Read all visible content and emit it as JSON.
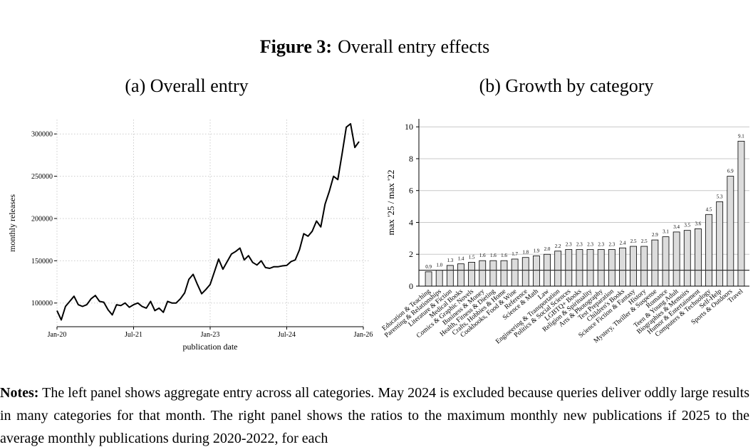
{
  "figure_title": {
    "label": "Figure 3:",
    "text": "Overall entry effects"
  },
  "chart_data": [
    {
      "type": "line",
      "title": "(a) Overall entry",
      "x_label": "publication date",
      "y_label": "monthly releases",
      "x": [
        "2020-01",
        "2020-02",
        "2020-03",
        "2020-04",
        "2020-05",
        "2020-06",
        "2020-07",
        "2020-08",
        "2020-09",
        "2020-10",
        "2020-11",
        "2020-12",
        "2021-01",
        "2021-02",
        "2021-03",
        "2021-04",
        "2021-05",
        "2021-06",
        "2021-07",
        "2021-08",
        "2021-09",
        "2021-10",
        "2021-11",
        "2021-12",
        "2022-01",
        "2022-02",
        "2022-03",
        "2022-04",
        "2022-05",
        "2022-06",
        "2022-07",
        "2022-08",
        "2022-09",
        "2022-10",
        "2022-11",
        "2022-12",
        "2023-01",
        "2023-02",
        "2023-03",
        "2023-04",
        "2023-05",
        "2023-06",
        "2023-07",
        "2023-08",
        "2023-09",
        "2023-10",
        "2023-11",
        "2023-12",
        "2024-01",
        "2024-02",
        "2024-03",
        "2024-04",
        "2024-05",
        "2024-06",
        "2024-07",
        "2024-08",
        "2024-09",
        "2024-10",
        "2024-11",
        "2024-12",
        "2025-01",
        "2025-02",
        "2025-03",
        "2025-04",
        "2025-05",
        "2025-06",
        "2025-07",
        "2025-08",
        "2025-09",
        "2025-10",
        "2025-11",
        "2025-12"
      ],
      "series": [
        {
          "name": "monthly releases",
          "color": "#000000",
          "values": [
            91000,
            80000,
            96000,
            102000,
            108000,
            98000,
            96000,
            98000,
            105000,
            109000,
            102000,
            101000,
            92000,
            86000,
            98000,
            97000,
            100000,
            95000,
            98000,
            100000,
            96000,
            94000,
            102000,
            91000,
            94000,
            89000,
            102000,
            100000,
            100000,
            105000,
            112000,
            128000,
            134000,
            122000,
            111000,
            116000,
            122000,
            137000,
            152000,
            140000,
            149000,
            158000,
            161000,
            165000,
            151000,
            156000,
            148000,
            145000,
            150000,
            142000,
            141000,
            143000,
            143000,
            144000,
            144500,
            149000,
            151000,
            163000,
            182000,
            179000,
            185000,
            197000,
            190000,
            217000,
            232000,
            250000,
            246000,
            276000,
            308000,
            312000,
            284000,
            291000
          ]
        }
      ],
      "xlim": [
        "2020-01",
        "2026-01"
      ],
      "xticks": [
        {
          "value": "2020-01",
          "label": "Jan-20"
        },
        {
          "value": "2021-07",
          "label": "Jul-21"
        },
        {
          "value": "2023-01",
          "label": "Jan-23"
        },
        {
          "value": "2024-07",
          "label": "Jul-24"
        },
        {
          "value": "2026-01",
          "label": "Jan-26"
        }
      ],
      "ylim": [
        72000,
        317000
      ],
      "yticks": [
        100000,
        150000,
        200000,
        250000,
        300000
      ],
      "grid": true
    },
    {
      "type": "bar",
      "title": "(b) Growth by category",
      "y_label": "max '25 / max '22",
      "categories": [
        "Education & Teaching",
        "Parenting & Relationships",
        "Literature & Fiction",
        "Medical Books",
        "Comics & Graphic Novels",
        "Business & Money",
        "Health, Fitness & Dieting",
        "Crafts, Hobbies & Home",
        "Cookbooks, Food & Wine",
        "Reference",
        "Science & Math",
        "Law",
        "Engineering & Transportation",
        "Politics & Social Sciences",
        "LGBTQ+ Books",
        "Religion & Spirituality",
        "Arts & Photography",
        "Test Preparation",
        "Children's Books",
        "Science Fiction & Fantasy",
        "History",
        "Mystery, Thriller & Suspense",
        "Romance",
        "Teen & Young Adult",
        "Biographies & Memoirs",
        "Humor & Entertainment",
        "Computers & Technology",
        "Self-Help",
        "Sports & Outdoors",
        "Travel"
      ],
      "values": [
        0.9,
        1.0,
        1.3,
        1.4,
        1.5,
        1.6,
        1.6,
        1.6,
        1.7,
        1.8,
        1.9,
        2.0,
        2.2,
        2.3,
        2.3,
        2.3,
        2.3,
        2.3,
        2.4,
        2.5,
        2.5,
        2.9,
        3.1,
        3.4,
        3.5,
        3.6,
        4.5,
        5.3,
        6.9,
        9.1
      ],
      "value_labels": [
        "0.9",
        "1.0",
        "1.3",
        "1.4",
        "1.5",
        "1.6",
        "1.6",
        "1.6",
        "1.7",
        "1.8",
        "1.9",
        "2.0",
        "2.2",
        "2.3",
        "2.3",
        "2.3",
        "2.3",
        "2.3",
        "2.4",
        "2.5",
        "2.5",
        "2.9",
        "3.1",
        "3.4",
        "3.5",
        "3.6",
        "4.5",
        "5.3",
        "6.9",
        "9.1"
      ],
      "color": "#dcdcdc",
      "ylim": [
        0,
        10.5
      ],
      "yticks": [
        0,
        2,
        4,
        6,
        8,
        10
      ],
      "reference_line": 1,
      "grid": true
    }
  ],
  "notes": {
    "label": "Notes:",
    "text": "The left panel shows aggregate entry across all categories. May 2024 is excluded because queries deliver oddly large results in many categories for that month. The right panel shows the ratios to the maximum monthly new publications if 2025 to the average monthly publications during 2020-2022, for each"
  }
}
